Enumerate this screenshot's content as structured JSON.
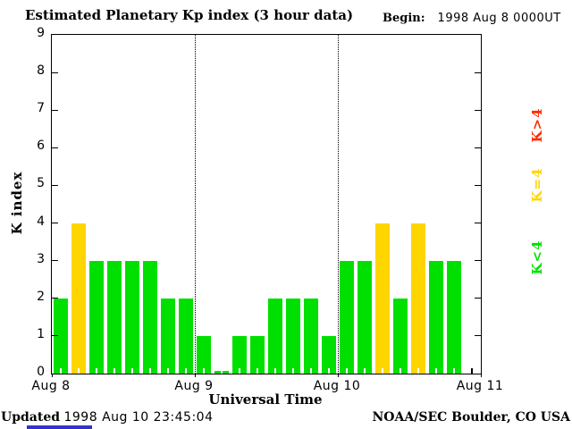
{
  "header": {
    "title": "Estimated Planetary Kp index (3 hour data)",
    "begin_label": "Begin:",
    "begin_value": "1998 Aug 8 0000UT"
  },
  "chart_data": {
    "type": "bar",
    "title": "Estimated Planetary Kp index (3 hour data)",
    "ylabel": "K index",
    "xlabel": "Universal Time",
    "ylim": [
      0,
      9
    ],
    "yticks": [
      0,
      1,
      2,
      3,
      4,
      5,
      6,
      7,
      8,
      9
    ],
    "x_tick_labels": [
      "Aug 8",
      "Aug 9",
      "Aug 10",
      "Aug 11"
    ],
    "bin_hours": 3,
    "values": [
      2,
      4,
      3,
      3,
      3,
      3,
      2,
      2,
      1,
      0,
      1,
      1,
      2,
      2,
      2,
      1,
      3,
      3,
      4,
      2,
      4,
      3,
      3,
      null
    ],
    "colors": {
      "below_4": "#00E000",
      "equal_4": "#FFD500",
      "above_4": "#FF2A00"
    },
    "day_divider_style": "dotted",
    "legend_position": "right-margin-rotated"
  },
  "legend": [
    {
      "label": "K>4",
      "color": "#FF2A00"
    },
    {
      "label": "K=4",
      "color": "#FFD500"
    },
    {
      "label": "K<4",
      "color": "#00E000"
    }
  ],
  "footer": {
    "updated_label": "Updated",
    "updated_value": "1998 Aug 10 23:45:04",
    "credit": "NOAA/SEC Boulder, CO USA",
    "blue_bar_color": "#3232CD"
  }
}
